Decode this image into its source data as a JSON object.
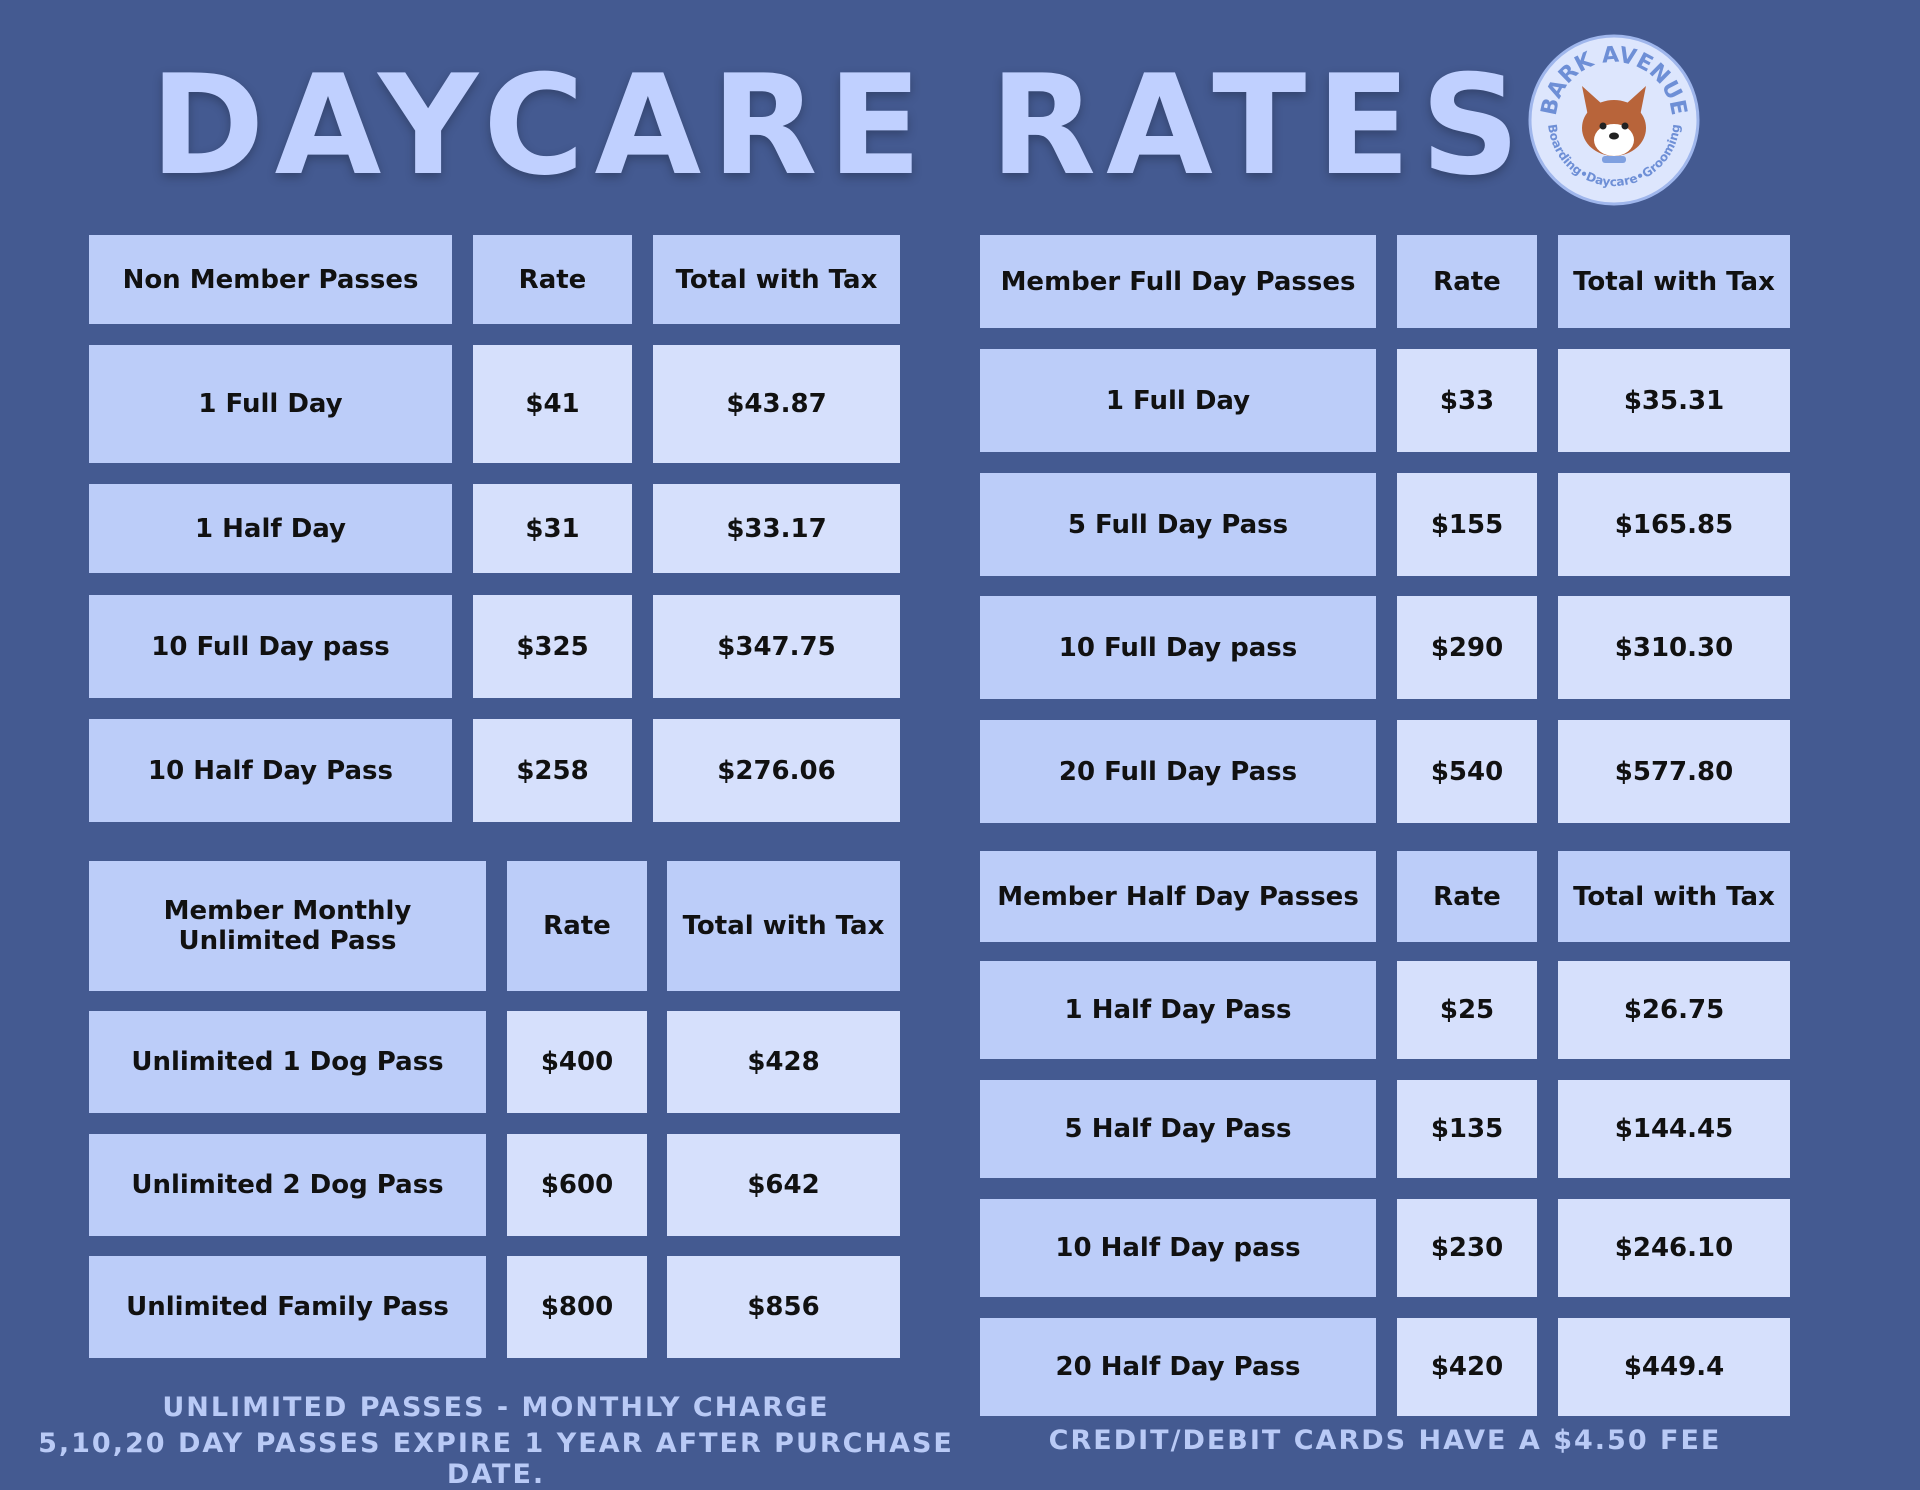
{
  "title": "DAYCARE RATES",
  "logo": {
    "name": "BARK AVENUE",
    "tagline": "Boarding•Daycare•Grooming"
  },
  "tables": [
    {
      "header": [
        "Non Member Passes",
        "Rate",
        "Total with Tax"
      ],
      "rows": [
        [
          "1 Full Day",
          "$41",
          "$43.87"
        ],
        [
          "1 Half Day",
          "$31",
          "$33.17"
        ],
        [
          "10 Full Day pass",
          "$325",
          "$347.75"
        ],
        [
          "10 Half Day Pass",
          "$258",
          "$276.06"
        ]
      ]
    },
    {
      "header": [
        "Member Monthly Unlimited Pass",
        "Rate",
        "Total with Tax"
      ],
      "rows": [
        [
          "Unlimited 1 Dog Pass",
          "$400",
          "$428"
        ],
        [
          "Unlimited 2 Dog Pass",
          "$600",
          "$642"
        ],
        [
          "Unlimited Family Pass",
          "$800",
          "$856"
        ]
      ]
    },
    {
      "header": [
        "Member Full Day Passes",
        "Rate",
        "Total with Tax"
      ],
      "rows": [
        [
          "1 Full Day",
          "$33",
          "$35.31"
        ],
        [
          "5 Full Day Pass",
          "$155",
          "$165.85"
        ],
        [
          "10 Full Day pass",
          "$290",
          "$310.30"
        ],
        [
          "20 Full Day Pass",
          "$540",
          "$577.80"
        ]
      ]
    },
    {
      "header": [
        "Member Half Day Passes",
        "Rate",
        "Total with Tax"
      ],
      "rows": [
        [
          "1 Half Day Pass",
          "$25",
          "$26.75"
        ],
        [
          "5 Half Day Pass",
          "$135",
          "$144.45"
        ],
        [
          "10 Half Day pass",
          "$230",
          "$246.10"
        ],
        [
          "20 Half Day Pass",
          "$420",
          "$449.4"
        ]
      ]
    }
  ],
  "notes": [
    "UNLIMITED PASSES - MONTHLY CHARGE",
    "5,10,20 DAY PASSES EXPIRE 1 YEAR AFTER PURCHASE DATE.",
    "CREDIT/DEBIT CARDS HAVE A $4.50 FEE"
  ]
}
